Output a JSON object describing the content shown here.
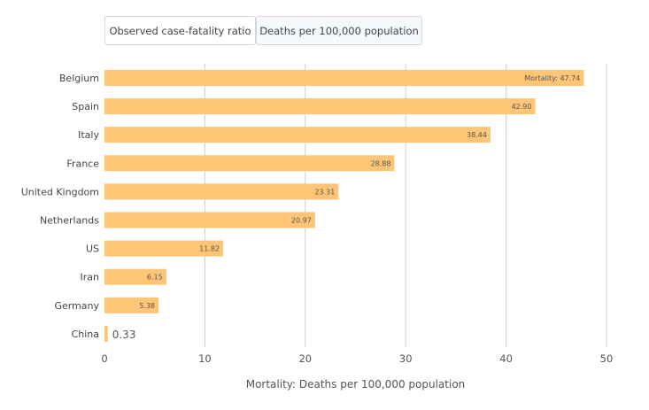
{
  "tabs": [
    {
      "label": "Observed case-fatality ratio",
      "active": false
    },
    {
      "label": "Deaths per 100,000 population",
      "active": true
    }
  ],
  "chart_data": {
    "type": "bar",
    "orientation": "horizontal",
    "categories": [
      "Belgium",
      "Spain",
      "Italy",
      "France",
      "United Kingdom",
      "Netherlands",
      "US",
      "Iran",
      "Germany",
      "China"
    ],
    "values": [
      47.74,
      42.9,
      38.44,
      28.88,
      23.31,
      20.97,
      11.82,
      6.15,
      5.38,
      0.33
    ],
    "data_labels": [
      "Mortality: 47.74",
      "42.90",
      "38.44",
      "28.88",
      "23.31",
      "20.97",
      "11.82",
      "6.15",
      "5.38",
      "0.33"
    ],
    "xlabel": "Mortality: Deaths per 100,000 population",
    "xlim": [
      0,
      50
    ],
    "xticks": [
      "0",
      "10",
      "20",
      "30",
      "40",
      "50"
    ],
    "grid": true,
    "bar_color": "#fec576"
  }
}
